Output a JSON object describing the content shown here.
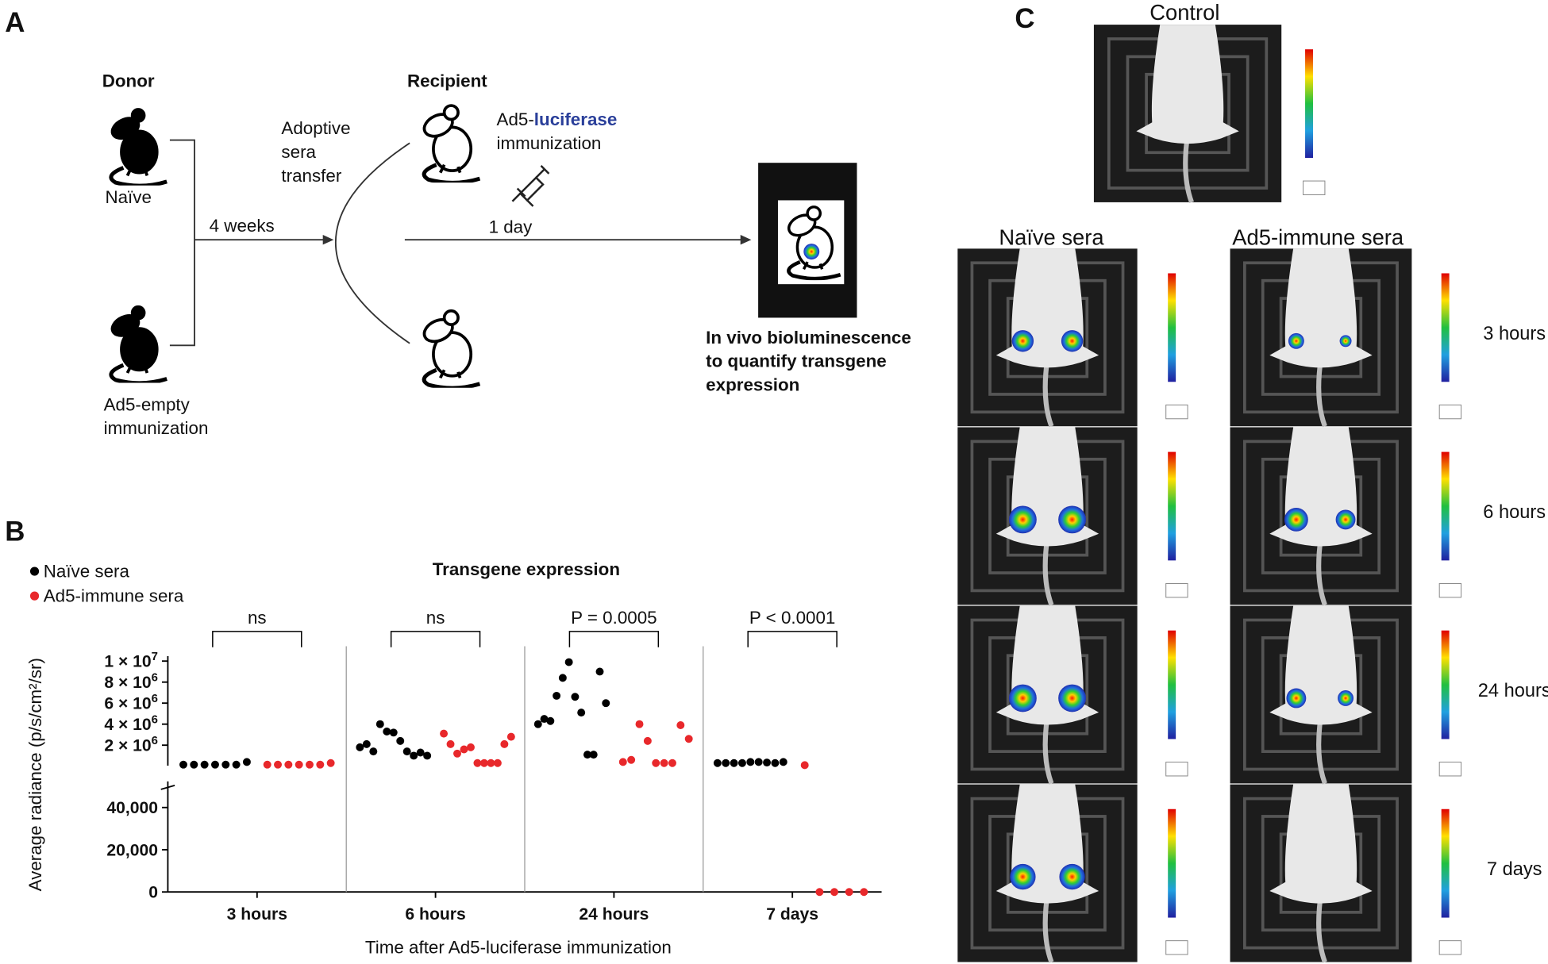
{
  "panel_a": {
    "label": "A",
    "donor": "Donor",
    "naive": "Naïve",
    "ad5_empty": [
      "Ad5-empty",
      "immunization"
    ],
    "adoptive": [
      "Adoptive",
      "sera",
      "transfer"
    ],
    "four_weeks": "4 weeks",
    "recipient": "Recipient",
    "ad5_luc": {
      "prefix": "Ad5-",
      "highlight": "luciferase",
      "suffix": "immunization"
    },
    "one_day": "1 day",
    "readout": [
      "In vivo bioluminescence",
      "to quantify transgene",
      "expression"
    ]
  },
  "chart_data": {
    "type": "scatter",
    "label": "B",
    "title": "Transgene expression",
    "y_label": "Average radiance (p/s/cm²/sr)",
    "x_label": "Time after Ad5-luciferase immunization",
    "categories": [
      "3 hours",
      "6 hours",
      "24 hours",
      "7 days"
    ],
    "significance": [
      "ns",
      "ns",
      "P = 0.0005",
      "P < 0.0001"
    ],
    "segments": [
      {
        "ylim": [
          0,
          50000
        ],
        "yticks": [
          0,
          {
            "value": 20000,
            "label": "20,000"
          },
          {
            "value": 40000,
            "label": "40,000"
          }
        ]
      },
      {
        "ylim": [
          50000,
          10000000
        ],
        "yticks": [
          {
            "value": 2000000,
            "label": "2 × 10",
            "exp": "6"
          },
          {
            "value": 4000000,
            "label": "4 × 10",
            "exp": "6"
          },
          {
            "value": 6000000,
            "label": "6 × 10",
            "exp": "6"
          },
          {
            "value": 8000000,
            "label": "8 × 10",
            "exp": "6"
          },
          {
            "value": 10000000,
            "label": "1 × 10",
            "exp": "7"
          }
        ]
      }
    ],
    "series": [
      {
        "name": "Naïve sera",
        "color": "#000000",
        "values": [
          [
            150000,
            150000,
            150000,
            150000,
            150000,
            150000,
            400000
          ],
          [
            1800000,
            2100000,
            1400000,
            4000000,
            3300000,
            3200000,
            2400000,
            1400000,
            1000000,
            1300000,
            1000000
          ],
          [
            4000000,
            4500000,
            4300000,
            6700000,
            8400000,
            9900000,
            6600000,
            5100000,
            1100000,
            1100000,
            9000000,
            6000000
          ],
          [
            300000,
            300000,
            300000,
            300000,
            400000,
            400000,
            350000,
            300000,
            400000
          ]
        ]
      },
      {
        "name": "Ad5-immune sera",
        "color": "#e8282b",
        "values": [
          [
            150000,
            150000,
            150000,
            150000,
            150000,
            150000,
            300000
          ],
          [
            3100000,
            2100000,
            1200000,
            1600000,
            1800000,
            300000,
            300000,
            300000,
            300000,
            2100000,
            2800000
          ],
          [
            400000,
            600000,
            4000000,
            2400000,
            300000,
            300000,
            300000,
            3900000,
            2600000
          ],
          [
            100000,
            0,
            0,
            0,
            0
          ]
        ]
      }
    ]
  },
  "panel_c": {
    "label": "C",
    "control": "Control",
    "columns": [
      "Naïve sera",
      "Ad5-immune sera"
    ],
    "rows": [
      "3 hours",
      "6 hours",
      "24 hours",
      "7 days"
    ]
  }
}
